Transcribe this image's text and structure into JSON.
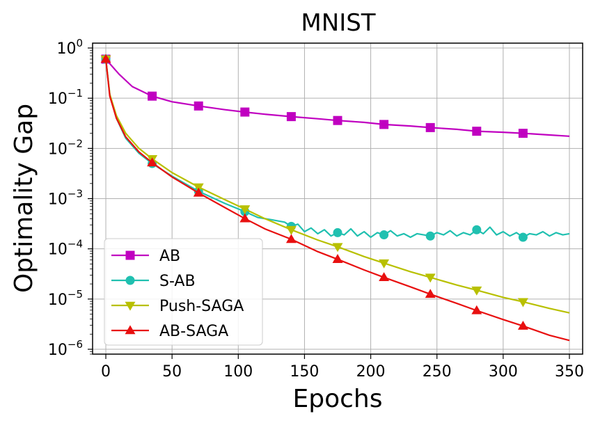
{
  "chart_data": {
    "type": "line",
    "title": "MNIST",
    "xlabel": "Epochs",
    "ylabel": "Optimality Gap",
    "xlim": [
      -10,
      360
    ],
    "yscale": "log",
    "ylim": [
      8e-07,
      1.25
    ],
    "xticks": [
      0,
      50,
      100,
      150,
      200,
      250,
      300,
      350
    ],
    "xtick_labels": [
      "0",
      "50",
      "100",
      "150",
      "200",
      "250",
      "300",
      "350"
    ],
    "yticks": [
      1,
      0.1,
      0.01,
      0.001,
      0.0001,
      1e-05,
      1e-06
    ],
    "ytick_labels": [
      {
        "base": "10",
        "exp": "0"
      },
      {
        "base": "10",
        "exp": "−1"
      },
      {
        "base": "10",
        "exp": "−2"
      },
      {
        "base": "10",
        "exp": "−3"
      },
      {
        "base": "10",
        "exp": "−4"
      },
      {
        "base": "10",
        "exp": "−5"
      },
      {
        "base": "10",
        "exp": "−6"
      }
    ],
    "grid": true,
    "legend_position": "bottom-left",
    "series": [
      {
        "name": "AB",
        "color": "#c000c0",
        "marker": "square",
        "x": [
          0,
          10,
          20,
          35,
          50,
          70,
          90,
          105,
          120,
          140,
          160,
          175,
          195,
          210,
          230,
          245,
          265,
          280,
          300,
          315,
          335,
          350
        ],
        "y": [
          0.6,
          0.3,
          0.17,
          0.11,
          0.085,
          0.07,
          0.059,
          0.053,
          0.048,
          0.043,
          0.039,
          0.036,
          0.033,
          0.03,
          0.028,
          0.026,
          0.024,
          0.022,
          0.021,
          0.02,
          0.0185,
          0.0175
        ],
        "marker_x": [
          0,
          35,
          70,
          105,
          140,
          175,
          210,
          245,
          280,
          315
        ],
        "marker_y": [
          0.6,
          0.11,
          0.07,
          0.053,
          0.043,
          0.036,
          0.03,
          0.026,
          0.022,
          0.02
        ]
      },
      {
        "name": "S-AB",
        "color": "#20c0b0",
        "marker": "circle",
        "x": [
          0,
          3,
          8,
          15,
          25,
          35,
          50,
          70,
          90,
          105,
          115,
          125,
          135,
          140,
          145,
          150,
          155,
          160,
          165,
          170,
          175,
          180,
          185,
          190,
          195,
          200,
          205,
          210,
          215,
          220,
          225,
          230,
          235,
          240,
          245,
          250,
          255,
          260,
          265,
          270,
          275,
          280,
          285,
          290,
          295,
          300,
          305,
          310,
          315,
          320,
          325,
          330,
          335,
          340,
          345,
          350
        ],
        "y": [
          0.6,
          0.12,
          0.04,
          0.016,
          0.008,
          0.005,
          0.0028,
          0.0014,
          0.0008,
          0.00055,
          0.00042,
          0.00038,
          0.00034,
          0.00028,
          0.00031,
          0.00022,
          0.00026,
          0.0002,
          0.00024,
          0.00018,
          0.00021,
          0.00019,
          0.00025,
          0.00018,
          0.00022,
          0.00017,
          0.00021,
          0.00019,
          0.00023,
          0.00018,
          0.0002,
          0.00017,
          0.0002,
          0.00019,
          0.00018,
          0.00021,
          0.00019,
          0.00023,
          0.00018,
          0.00021,
          0.00019,
          0.00024,
          0.0002,
          0.00027,
          0.00019,
          0.00022,
          0.00018,
          0.00021,
          0.00017,
          0.0002,
          0.00019,
          0.00022,
          0.00018,
          0.00021,
          0.00019,
          0.0002
        ],
        "marker_x": [
          0,
          35,
          70,
          105,
          140,
          175,
          210,
          245,
          280,
          315
        ],
        "marker_y": [
          0.6,
          0.005,
          0.0014,
          0.00055,
          0.00028,
          0.00021,
          0.00019,
          0.00018,
          0.00024,
          0.00017
        ]
      },
      {
        "name": "Push-SAGA",
        "color": "#b8c000",
        "marker": "triangle-down",
        "x": [
          0,
          3,
          8,
          15,
          25,
          35,
          50,
          70,
          90,
          105,
          120,
          140,
          160,
          175,
          195,
          210,
          230,
          245,
          265,
          280,
          300,
          315,
          335,
          350
        ],
        "y": [
          0.6,
          0.12,
          0.045,
          0.02,
          0.01,
          0.0062,
          0.0033,
          0.0017,
          0.00095,
          0.00062,
          0.0004,
          0.00024,
          0.00015,
          0.00011,
          7e-05,
          5.2e-05,
          3.5e-05,
          2.7e-05,
          1.9e-05,
          1.5e-05,
          1.08e-05,
          8.8e-06,
          6.5e-06,
          5.3e-06
        ],
        "marker_x": [
          0,
          35,
          70,
          105,
          140,
          175,
          210,
          245,
          280,
          315
        ],
        "marker_y": [
          0.6,
          0.0062,
          0.0017,
          0.00062,
          0.00024,
          0.00011,
          5.2e-05,
          2.7e-05,
          1.5e-05,
          8.8e-06
        ]
      },
      {
        "name": "AB-SAGA",
        "color": "#e81010",
        "marker": "triangle-up",
        "x": [
          0,
          3,
          8,
          15,
          25,
          35,
          50,
          70,
          90,
          105,
          120,
          140,
          160,
          175,
          195,
          210,
          230,
          245,
          265,
          280,
          300,
          315,
          335,
          350
        ],
        "y": [
          0.6,
          0.11,
          0.04,
          0.017,
          0.0085,
          0.0052,
          0.0027,
          0.0013,
          0.00066,
          0.0004,
          0.00025,
          0.000155,
          8.8e-05,
          6.2e-05,
          3.8e-05,
          2.7e-05,
          1.75e-05,
          1.25e-05,
          8.2e-06,
          5.9e-06,
          3.9e-06,
          2.9e-06,
          1.9e-06,
          1.5e-06
        ],
        "marker_x": [
          0,
          35,
          70,
          105,
          140,
          175,
          210,
          245,
          280,
          315
        ],
        "marker_y": [
          0.6,
          0.0052,
          0.0013,
          0.0004,
          0.000155,
          6.2e-05,
          2.7e-05,
          1.25e-05,
          5.9e-06,
          2.9e-06
        ]
      }
    ]
  }
}
